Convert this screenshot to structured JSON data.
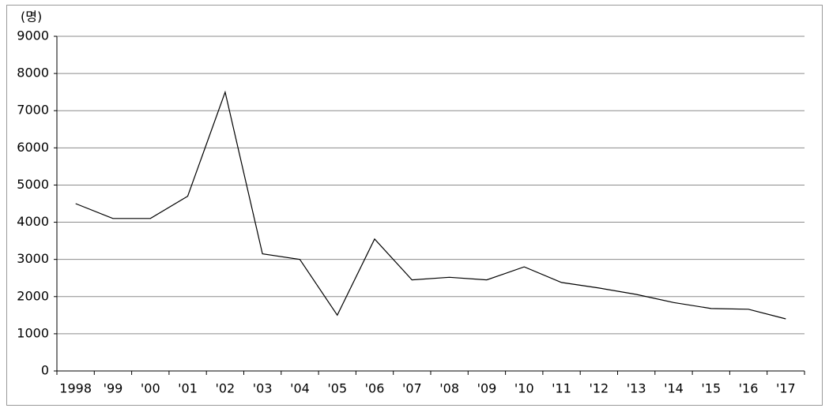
{
  "chart_data": {
    "type": "line",
    "y_unit": "(명)",
    "categories": [
      "1998",
      "'99",
      "'00",
      "'01",
      "'02",
      "'03",
      "'04",
      "'05",
      "'06",
      "'07",
      "'08",
      "'09",
      "'10",
      "'11",
      "'12",
      "'13",
      "'14",
      "'15",
      "'16",
      "'17"
    ],
    "series": [
      {
        "color": "#000000",
        "values": [
          4500,
          4100,
          4100,
          4700,
          7500,
          3150,
          3000,
          1500,
          3550,
          2450,
          2520,
          2450,
          2800,
          2380,
          2230,
          2060,
          1840,
          1680,
          1660,
          1400
        ]
      }
    ],
    "ylim": [
      0,
      9000
    ],
    "yticks": [
      0,
      1000,
      2000,
      3000,
      4000,
      5000,
      6000,
      7000,
      8000,
      9000
    ],
    "grid": true
  }
}
